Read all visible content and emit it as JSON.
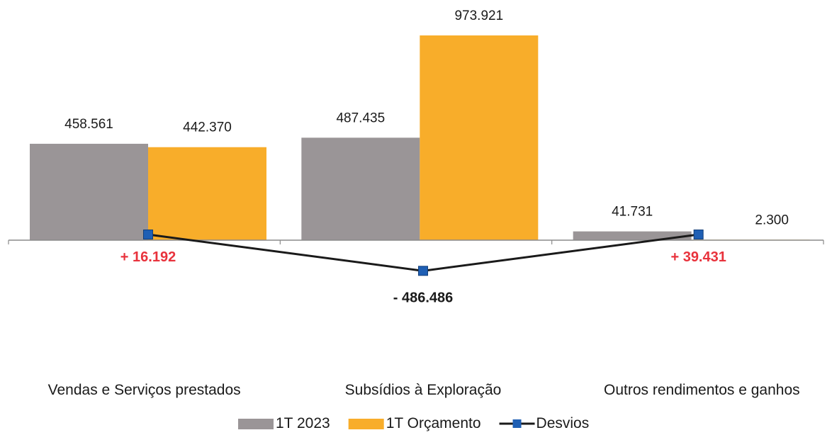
{
  "chart_data": {
    "type": "bar",
    "categories": [
      "Vendas e Serviços prestados",
      "Subsídios à Exploração",
      "Outros rendimentos e ganhos"
    ],
    "series": [
      {
        "name": "1T 2023",
        "kind": "bar",
        "color": "#9a9597",
        "values": [
          458561,
          487435,
          41731
        ],
        "labels": [
          "458.561",
          "487.435",
          "41.731"
        ]
      },
      {
        "name": "1T Orçamento",
        "kind": "bar",
        "color": "#f8ad2a",
        "values": [
          442370,
          973921,
          2300
        ],
        "labels": [
          "442.370",
          "973.921",
          "2.300"
        ]
      },
      {
        "name": "Desvios",
        "kind": "line",
        "color": "#1f5fb4",
        "values": [
          16192,
          -486486,
          39431
        ],
        "labels": [
          "+ 16.192",
          "- 486.486",
          "+ 39.431"
        ],
        "label_colors": [
          "#e8323c",
          "#1a1a1a",
          "#e8323c"
        ]
      }
    ],
    "ylim": [
      -550000,
      1000000
    ],
    "grid": false,
    "legend": "bottom"
  }
}
